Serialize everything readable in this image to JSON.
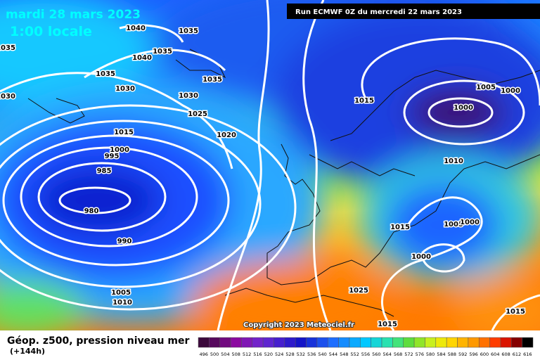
{
  "header": {
    "date": "mardi 28 mars 2023",
    "time": "1:00 locale",
    "run": "Run ECMWF 0Z du mercredi 22 mars 2023"
  },
  "map": {
    "isobar_labels": [
      1040,
      1035,
      1035,
      1035,
      1040,
      1035,
      1035,
      1030,
      1030,
      1030,
      1015,
      1005,
      1000,
      1000,
      1025,
      1015,
      1020,
      1000,
      995,
      985,
      1010,
      980,
      1015,
      1005,
      1000,
      990,
      1000,
      1005,
      1010,
      1025,
      1015,
      1015
    ],
    "copyright": "Copyright 2023 Meteociel.fr"
  },
  "legend": {
    "title": "Géop. z500, pression niveau mer",
    "lead": "(+144h)",
    "scale": [
      496,
      500,
      504,
      508,
      512,
      516,
      520,
      524,
      528,
      532,
      536,
      540,
      544,
      548,
      552,
      556,
      560,
      564,
      568,
      572,
      576,
      580,
      584,
      588,
      592,
      596,
      600,
      604,
      608,
      612,
      616
    ]
  }
}
